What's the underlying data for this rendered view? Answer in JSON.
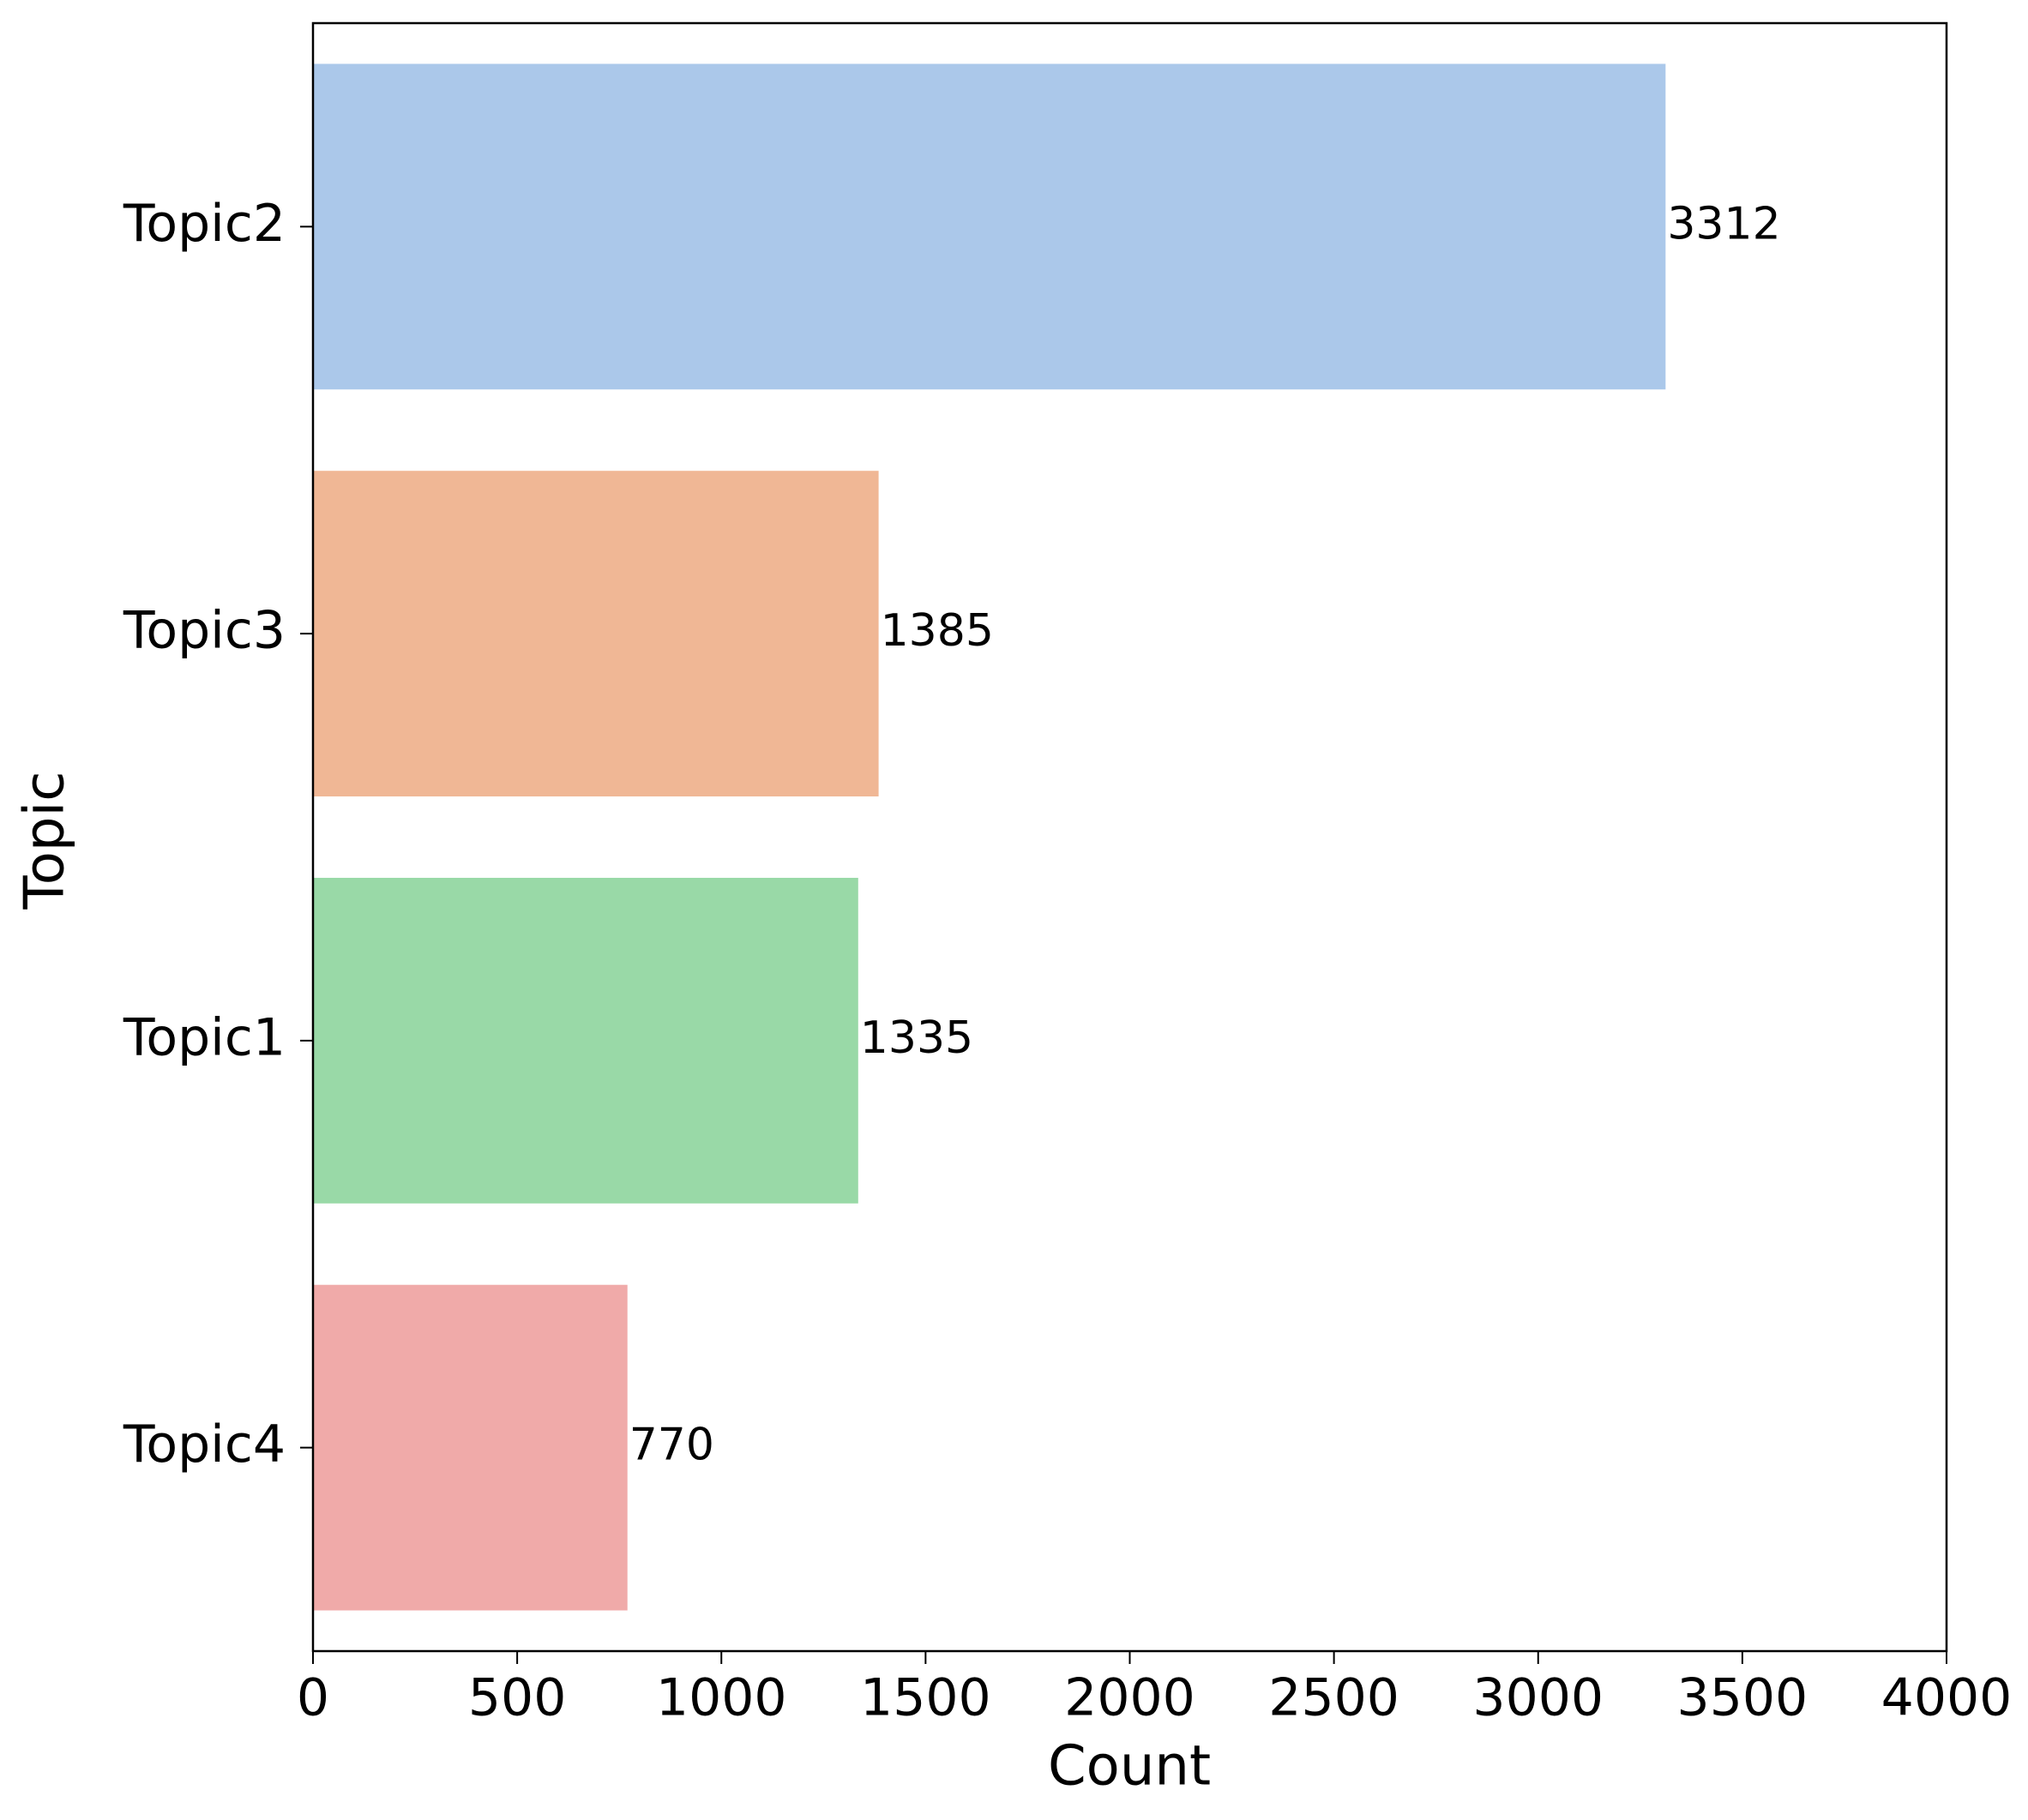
{
  "chart_data": {
    "type": "bar",
    "orientation": "horizontal",
    "categories": [
      "Topic2",
      "Topic3",
      "Topic1",
      "Topic4"
    ],
    "values": [
      3312,
      1385,
      1335,
      770
    ],
    "colors": [
      "#abc8ea",
      "#f0b795",
      "#99d9a7",
      "#f0aaa9"
    ],
    "xlabel": "Count",
    "ylabel": "Topic",
    "xlim": [
      0,
      4000
    ],
    "xticks": [
      0,
      500,
      1000,
      1500,
      2000,
      2500,
      3000,
      3500,
      4000
    ],
    "grid": false
  }
}
